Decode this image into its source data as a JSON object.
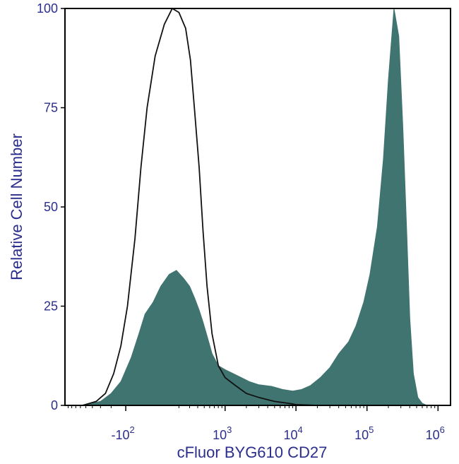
{
  "chart_data": {
    "type": "area",
    "title": "",
    "xlabel": "cFluor BYG610 CD27",
    "ylabel": "Relative Cell Number",
    "x_scale": "biexponential",
    "xlim": [
      -1000,
      1500000
    ],
    "ylim": [
      0,
      100
    ],
    "y_ticks": [
      "0",
      "25",
      "50",
      "75",
      "100"
    ],
    "x_ticks": [
      {
        "value": -100,
        "base": "-10",
        "exp": "2"
      },
      {
        "value": 1000,
        "base": "10",
        "exp": "3"
      },
      {
        "value": 10000,
        "base": "10",
        "exp": "4"
      },
      {
        "value": 100000,
        "base": "10",
        "exp": "5"
      },
      {
        "value": 1000000,
        "base": "10",
        "exp": "6"
      }
    ],
    "grid": false,
    "legend": "none",
    "series": [
      {
        "kind": "filled",
        "color": "#3f7470",
        "x": [
          -1000,
          -560,
          -300,
          -200,
          -130,
          -70,
          -30,
          0,
          40,
          80,
          130,
          180,
          240,
          300,
          360,
          420,
          480,
          560,
          650,
          800,
          1000,
          1300,
          1700,
          2200,
          3000,
          4500,
          6500,
          9000,
          12000,
          16000,
          22000,
          30000,
          40000,
          55000,
          70000,
          90000,
          110000,
          140000,
          170000,
          200000,
          240000,
          280000,
          320000,
          360000,
          400000,
          450000,
          520000,
          600000,
          700000,
          850000,
          1000000,
          1500000
        ],
        "y": [
          0,
          0,
          1,
          3,
          6,
          12,
          18,
          23,
          26,
          30,
          33,
          34,
          32,
          30,
          27,
          24,
          21,
          17,
          13,
          10,
          9,
          8,
          7,
          6,
          5.2,
          4.8,
          4,
          3.6,
          4,
          5,
          7,
          9.5,
          13,
          16,
          20,
          26,
          33,
          45,
          62,
          82,
          100,
          93,
          70,
          45,
          22,
          8,
          2,
          0.5,
          0,
          0,
          0,
          0
        ]
      },
      {
        "kind": "outline",
        "color": "#111111",
        "x": [
          -1000,
          -560,
          -350,
          -250,
          -180,
          -130,
          -90,
          -50,
          -20,
          10,
          50,
          100,
          150,
          200,
          260,
          310,
          360,
          420,
          480,
          550,
          650,
          800,
          1000,
          1400,
          2000,
          3000,
          5000,
          8000,
          10000,
          20000,
          1500000
        ],
        "y": [
          0,
          0,
          1,
          3,
          8,
          15,
          25,
          42,
          60,
          75,
          88,
          96,
          100,
          99,
          95,
          87,
          74,
          60,
          44,
          30,
          18,
          10,
          7,
          5,
          3,
          2,
          1,
          0.5,
          0.2,
          0,
          0
        ]
      }
    ]
  }
}
